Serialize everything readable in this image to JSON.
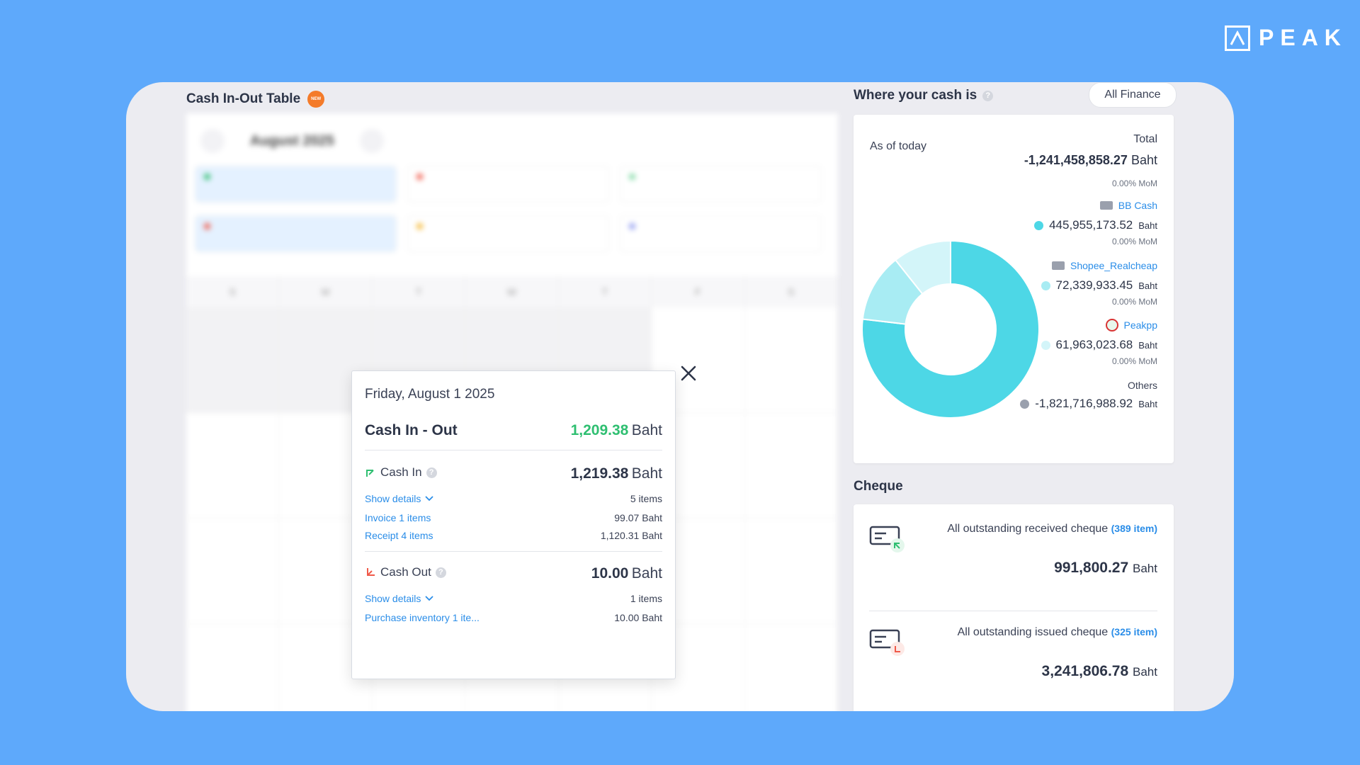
{
  "brand": {
    "logo_text": "PEAK"
  },
  "calendar": {
    "title": "Cash In-Out Table",
    "new_badge": "NEW",
    "month": "August 2025",
    "weekdays": [
      "S",
      "M",
      "T",
      "W",
      "T",
      "F",
      "S"
    ]
  },
  "popup": {
    "date": "Friday, August 1 2025",
    "summary_label": "Cash In - Out",
    "summary_amount": "1,209.38",
    "unit": "Baht",
    "cash_in": {
      "label": "Cash In",
      "amount": "1,219.38",
      "show_details": "Show details",
      "items_count": "5 items",
      "rows": [
        {
          "label": "Invoice 1 items",
          "amount": "99.07 Baht"
        },
        {
          "label": "Receipt 4 items",
          "amount": "1,120.31 Baht"
        }
      ]
    },
    "cash_out": {
      "label": "Cash Out",
      "amount": "10.00",
      "show_details": "Show details",
      "items_count": "1 items",
      "rows": [
        {
          "label": "Purchase inventory 1 ite...",
          "amount": "10.00 Baht"
        }
      ]
    }
  },
  "cash": {
    "title": "Where your cash is",
    "filter": "All Finance",
    "as_of": "As of today",
    "total_label": "Total",
    "total_amount": "-1,241,458,858.27",
    "unit": "Baht",
    "total_mom": "0.00% MoM",
    "accounts": [
      {
        "name": "BB Cash",
        "amount": "445,955,173.52",
        "mom": "0.00% MoM",
        "color": "#4dd7e6"
      },
      {
        "name": "Shopee_Realcheap",
        "amount": "72,339,933.45",
        "mom": "0.00% MoM",
        "color": "#a8ecf3"
      },
      {
        "name": "Peakpp",
        "amount": "61,963,023.68",
        "mom": "0.00% MoM",
        "color": "#d3f5f9"
      }
    ],
    "others": {
      "name": "Others",
      "amount": "-1,821,716,988.92",
      "color": "#9aa0ad"
    }
  },
  "cheque": {
    "title": "Cheque",
    "received": {
      "label": "All outstanding received cheque",
      "count": "(389 item)",
      "amount": "991,800.27"
    },
    "issued": {
      "label": "All outstanding issued cheque",
      "count": "(325 item)",
      "amount": "3,241,806.78"
    },
    "unit": "Baht"
  }
}
